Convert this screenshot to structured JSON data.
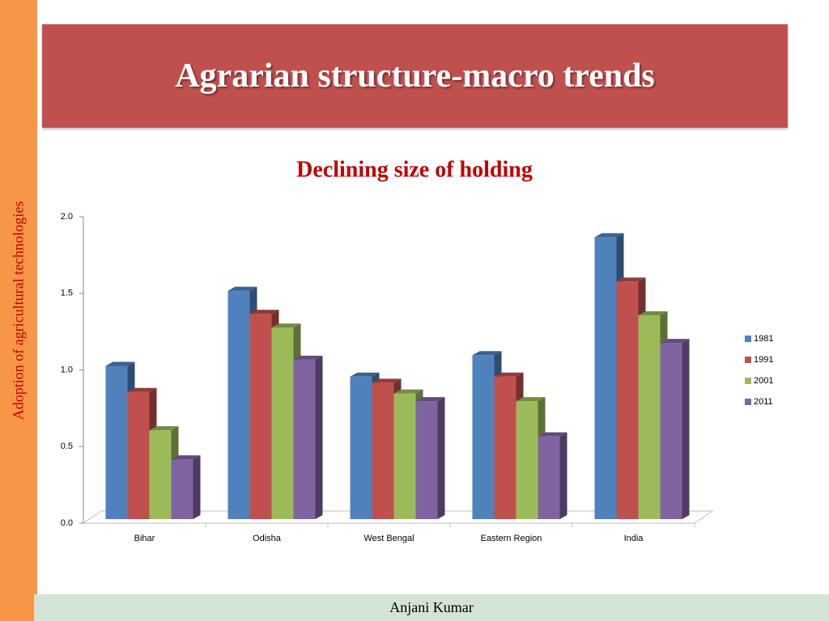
{
  "sidebar": "Adoption of  agricultural technologies",
  "header": {
    "title": "Agrarian structure-macro trends"
  },
  "footer": "Anjani Kumar",
  "chart_data": {
    "type": "bar",
    "title": "Declining size of holding",
    "categories": [
      "Bihar",
      "Odisha",
      "West Bengal",
      "Eastern Region",
      "India"
    ],
    "series": [
      {
        "name": "1981",
        "color": "#4f81bd",
        "values": [
          1.0,
          1.49,
          0.93,
          1.07,
          1.84
        ]
      },
      {
        "name": "1991",
        "color": "#c0504d",
        "values": [
          0.83,
          1.34,
          0.89,
          0.93,
          1.55
        ]
      },
      {
        "name": "2001",
        "color": "#9bbb59",
        "values": [
          0.58,
          1.25,
          0.82,
          0.77,
          1.33
        ]
      },
      {
        "name": "2011",
        "color": "#8064a2",
        "values": [
          0.39,
          1.04,
          0.77,
          0.54,
          1.15
        ]
      }
    ],
    "ylim": [
      0,
      2
    ],
    "yticks": [
      {
        "value": 0,
        "label": "0.0"
      },
      0.5,
      {
        "value": 1,
        "label": "1.0"
      },
      1.5,
      {
        "value": 2,
        "label": "2.0"
      }
    ],
    "legend": "right"
  }
}
